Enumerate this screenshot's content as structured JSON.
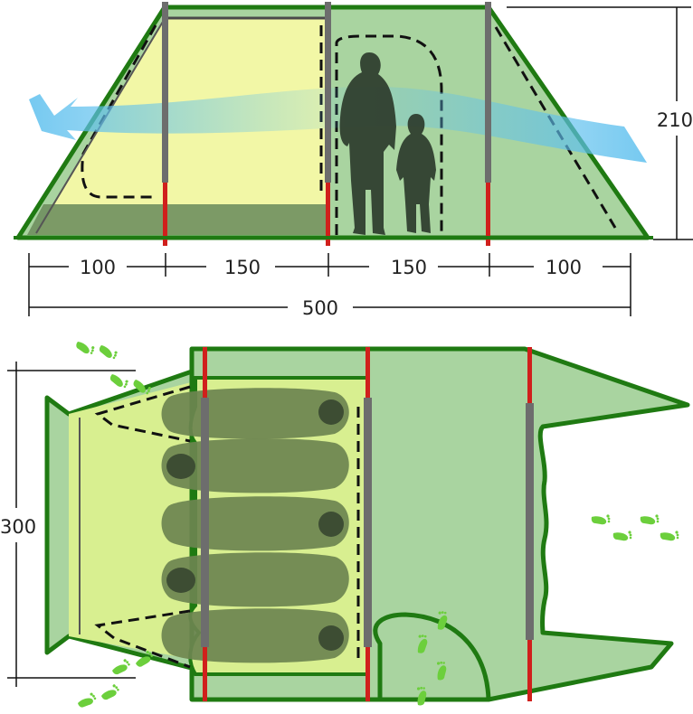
{
  "colors": {
    "outline": "#1f7a12",
    "fly_fill": "#a9d4a0",
    "inner_fill": "#f2f7a6",
    "sleeping_area_fill": "#d8ef90",
    "floor_shade": "#6f8f5f",
    "pole_red": "#d0201c",
    "pole_grey": "#6d6d6d",
    "airflow": "#5ec0ee",
    "footprint": "#6ccf3c",
    "sleeping_bag": "#6c8450",
    "silhouette": "#2d3b2b"
  },
  "icons": {
    "airflow": "airflow-arrow-icon",
    "adult": "adult-silhouette-icon",
    "child": "child-silhouette-icon",
    "footprints": "footprints-icon",
    "sleeping_bag": "sleeping-bag-icon"
  },
  "dimensions": {
    "height": "210",
    "segment_1": "100",
    "segment_2": "150",
    "segment_3": "150",
    "segment_4": "100",
    "total_length": "500",
    "width": "300"
  },
  "sleeping_bag_count": 5,
  "footprint_groups": 6
}
